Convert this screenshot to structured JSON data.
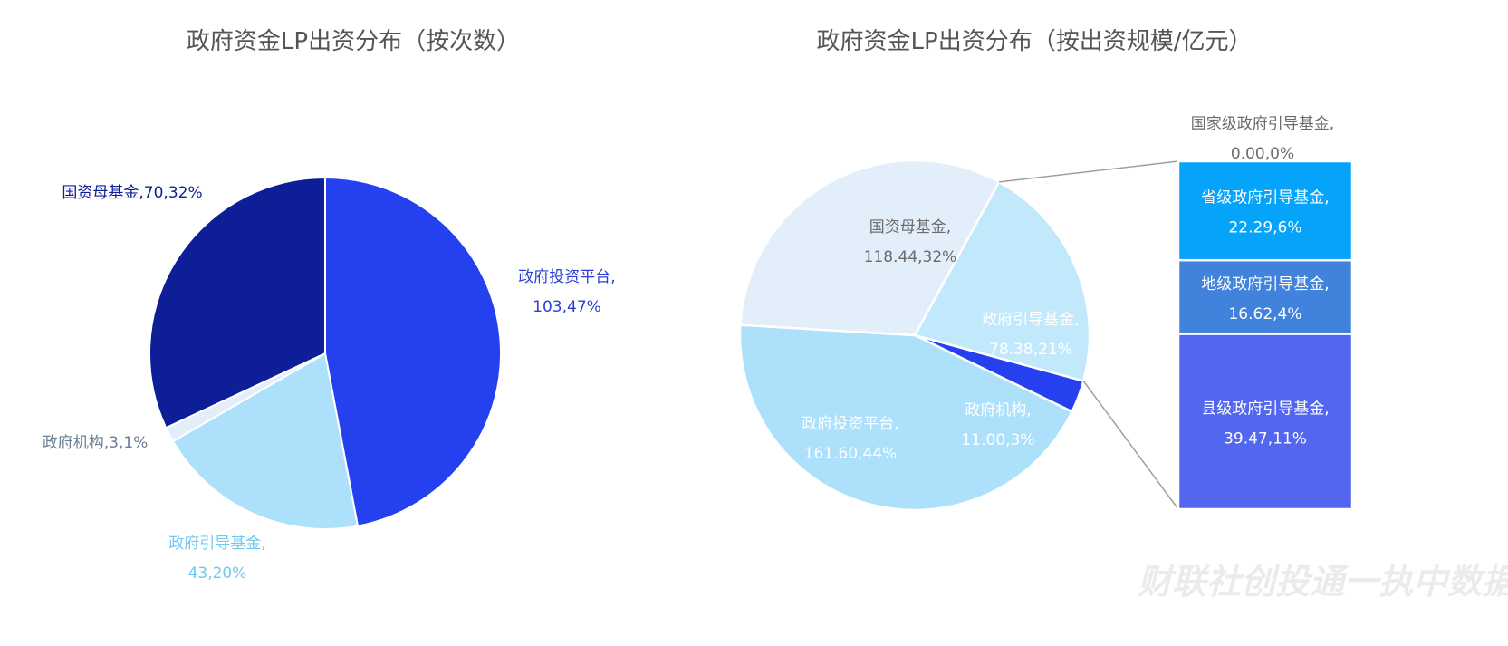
{
  "chart_data": [
    {
      "type": "pie",
      "title": "政府资金LP出资分布（按次数）",
      "slices": [
        {
          "name": "政府投资平台",
          "value": 103,
          "percent": "47%",
          "color": "#2540ee",
          "label_color": "#2a3fd6",
          "label_line1": "政府投资平台,",
          "label_line2": "103,47%"
        },
        {
          "name": "政府引导基金",
          "value": 43,
          "percent": "20%",
          "color": "#ade0fa",
          "label_color": "#6ec9f2",
          "label_line1": "政府引导基金,",
          "label_line2": "43,20%"
        },
        {
          "name": "政府机构",
          "value": 3,
          "percent": "1%",
          "color": "#e3eefb",
          "label_color": "#6b7d95",
          "label_line1": "政府机构,3,1%",
          "label_line2": ""
        },
        {
          "name": "国资母基金",
          "value": 70,
          "percent": "32%",
          "color": "#0e1e97",
          "label_color": "#0e1e97",
          "label_line1": "国资母基金,70,32%",
          "label_line2": ""
        }
      ]
    },
    {
      "type": "pie",
      "title": "政府资金LP出资分布（按出资规模/亿元）",
      "slices": [
        {
          "name": "政府引导基金",
          "value": 78.38,
          "percent": "21%",
          "color": "#c2e8fc",
          "label_color": "#ffffff",
          "label_line1": "政府引导基金,",
          "label_line2": "78.38,21%"
        },
        {
          "name": "政府机构",
          "value": 11.0,
          "percent": "3%",
          "color": "#2540ee",
          "label_color": "#ffffff",
          "label_line1": "政府机构,",
          "label_line2": "11.00,3%"
        },
        {
          "name": "政府投资平台",
          "value": 161.6,
          "percent": "44%",
          "color": "#ade0fa",
          "label_color": "#ffffff",
          "label_line1": "政府投资平台,",
          "label_line2": "161.60,44%"
        },
        {
          "name": "国资母基金",
          "value": 118.44,
          "percent": "32%",
          "color": "#e3eefb",
          "label_color": "#6b6b6b",
          "label_line1": "国资母基金,",
          "label_line2": "118.44,32%"
        }
      ],
      "breakdown": {
        "of": "政府引导基金",
        "items": [
          {
            "name": "国家级政府引导基金",
            "value": 0.0,
            "percent": "0%",
            "color": "#ffffff",
            "label_color": "#6b6b6b",
            "label_line1": "国家级政府引导基金,",
            "label_line2": "0.00,0%"
          },
          {
            "name": "省级政府引导基金",
            "value": 22.29,
            "percent": "6%",
            "color": "#06a3fb",
            "label_color": "#ffffff",
            "label_line1": "省级政府引导基金,",
            "label_line2": "22.29,6%"
          },
          {
            "name": "地级政府引导基金",
            "value": 16.62,
            "percent": "4%",
            "color": "#4183dc",
            "label_color": "#ffffff",
            "label_line1": "地级政府引导基金,",
            "label_line2": "16.62,4%"
          },
          {
            "name": "县级政府引导基金",
            "value": 39.47,
            "percent": "11%",
            "color": "#5266f0",
            "label_color": "#ffffff",
            "label_line1": "县级政府引导基金,",
            "label_line2": "39.47,11%"
          }
        ]
      }
    }
  ],
  "watermark": "财联社创投通一执中数据",
  "colors": {
    "title": "#555555",
    "connector": "#9e9e9e",
    "watermark": "#ebebeb"
  }
}
